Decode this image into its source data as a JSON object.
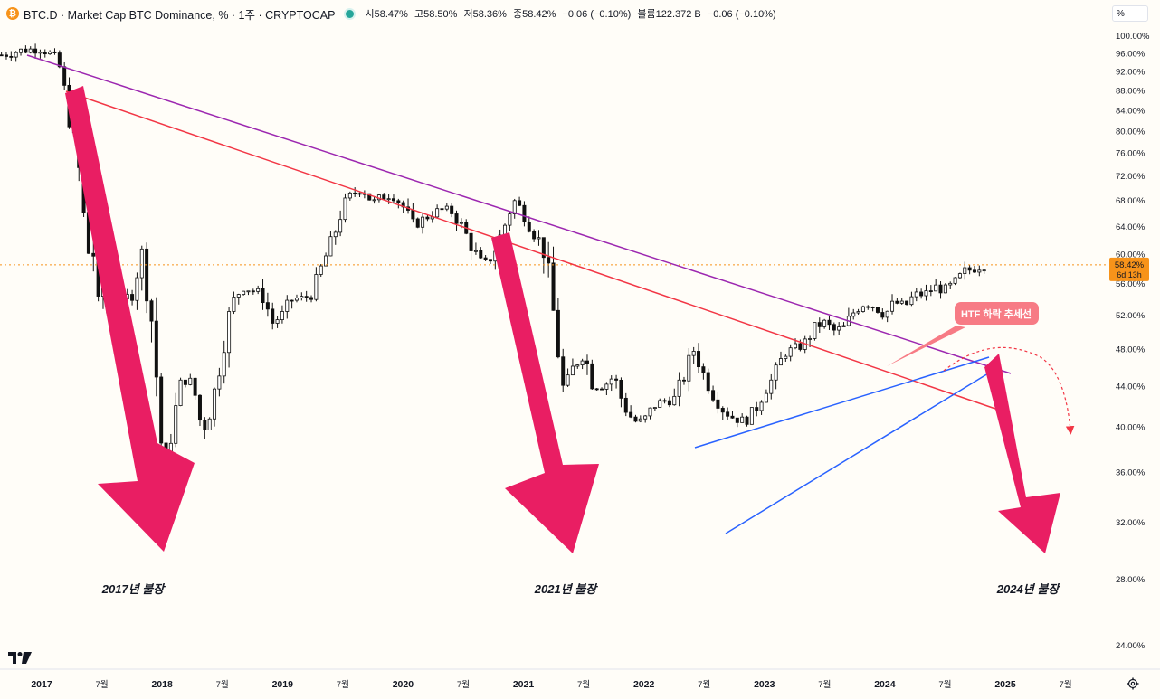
{
  "header": {
    "logo_letter": "₿",
    "title": "BTC.D · Market Cap BTC Dominance, % · 1주 · CRYPTOCAP",
    "open_label": "시",
    "open": "58.47%",
    "high_label": "고",
    "high": "58.50%",
    "low_label": "저",
    "low": "58.36%",
    "close_label": "종",
    "close": "58.42%",
    "change": "−0.06 (−0.10%)",
    "volume_label": "볼륨",
    "volume": "122.372 B",
    "volume_change": "−0.06 (−0.10%)"
  },
  "scale_button": "%",
  "price_tag": {
    "value": "58.42%",
    "countdown": "6d 13h"
  },
  "colors": {
    "bull": "#0b0b0b",
    "bear": "#0b0b0b",
    "arrow": "#e91e63",
    "red_line": "#f23645",
    "purple_line": "#9c27b0",
    "blue_line": "#2962ff",
    "callout": "#f77b85",
    "price_tag": "#f7931a"
  },
  "annotations": {
    "callout": "HTF 하락 추세선",
    "bull_2017": "2017년 불장",
    "bull_2021": "2021년 불장",
    "bull_2024": "2024년 불장"
  },
  "chart_data": {
    "type": "line",
    "title": "BTC.D · Market Cap BTC Dominance, % · 1주 · CRYPTOCAP",
    "ylabel": "",
    "y_scale": "log",
    "ylim": [
      22.6,
      101.5
    ],
    "y_ticks": [
      "100.00%",
      "96.00%",
      "92.00%",
      "88.00%",
      "84.00%",
      "80.00%",
      "76.00%",
      "72.00%",
      "68.00%",
      "64.00%",
      "60.00%",
      "56.00%",
      "52.00%",
      "48.00%",
      "44.00%",
      "40.00%",
      "36.00%",
      "32.00%",
      "28.00%",
      "24.00%"
    ],
    "x_ticks": [
      "2017",
      "7월",
      "2018",
      "7월",
      "2019",
      "7월",
      "2020",
      "7월",
      "2021",
      "7월",
      "2022",
      "7월",
      "2023",
      "7월",
      "2024",
      "7월",
      "2025",
      "7월"
    ],
    "last_price": 58.42,
    "series": [
      {
        "x": [
          "2016-09",
          "2016-11",
          "2017-01",
          "2017-02",
          "2017-03",
          "2017-03",
          "2017-04",
          "2017-05",
          "2017-05",
          "2017-06",
          "2017-06",
          "2017-07",
          "2017-08",
          "2017-09",
          "2017-10",
          "2017-11",
          "2017-12",
          "2018-01",
          "2018-01",
          "2018-02",
          "2018-03",
          "2018-04",
          "2018-05",
          "2018-06",
          "2018-07",
          "2018-08",
          "2018-09",
          "2018-10",
          "2018-11",
          "2018-12",
          "2019-01",
          "2019-02",
          "2019-03",
          "2019-04",
          "2019-05",
          "2019-06",
          "2019-07",
          "2019-08",
          "2019-09",
          "2019-10",
          "2019-11",
          "2019-12",
          "2020-01",
          "2020-02",
          "2020-03",
          "2020-04",
          "2020-05",
          "2020-06",
          "2020-07",
          "2020-08",
          "2020-09",
          "2020-10",
          "2020-11",
          "2020-12",
          "2021-01",
          "2021-02",
          "2021-03",
          "2021-04",
          "2021-05",
          "2021-06",
          "2021-07",
          "2021-08",
          "2021-09",
          "2021-10",
          "2021-11",
          "2021-12",
          "2022-01",
          "2022-02",
          "2022-03",
          "2022-04",
          "2022-05",
          "2022-06",
          "2022-07",
          "2022-08",
          "2022-09",
          "2022-10",
          "2022-11",
          "2022-12",
          "2023-01",
          "2023-02",
          "2023-03",
          "2023-04",
          "2023-05",
          "2023-06",
          "2023-07",
          "2023-08",
          "2023-09",
          "2023-10",
          "2023-11",
          "2023-12",
          "2024-01",
          "2024-02",
          "2024-03",
          "2024-04",
          "2024-05",
          "2024-06",
          "2024-07",
          "2024-08",
          "2024-09",
          "2024-10",
          "2024-11"
        ],
        "y": [
          95.5,
          96.5,
          97.0,
          95.5,
          92.0,
          84.0,
          80.0,
          70.0,
          58.0,
          64.0,
          52.0,
          56.0,
          50.0,
          53.0,
          55.0,
          60.0,
          51.0,
          37.5,
          36.5,
          40.0,
          44.5,
          44.5,
          39.5,
          42.0,
          48.0,
          53.5,
          55.5,
          55.0,
          54.5,
          51.0,
          52.0,
          54.0,
          54.0,
          54.5,
          58.5,
          62.0,
          67.0,
          69.0,
          70.0,
          67.5,
          68.5,
          69.0,
          67.0,
          64.0,
          65.0,
          66.0,
          66.5,
          66.0,
          63.5,
          60.5,
          58.0,
          60.0,
          63.5,
          68.0,
          66.0,
          63.0,
          61.0,
          52.0,
          43.0,
          46.0,
          47.5,
          44.0,
          44.0,
          45.0,
          42.0,
          40.5,
          40.5,
          42.0,
          42.5,
          42.5,
          45.0,
          48.0,
          45.0,
          43.0,
          41.5,
          40.8,
          40.5,
          41.5,
          43.5,
          45.0,
          47.5,
          48.0,
          48.5,
          50.5,
          51.0,
          50.0,
          50.5,
          52.5,
          53.5,
          53.0,
          52.0,
          53.5,
          53.0,
          54.5,
          54.5,
          55.5,
          55.0,
          56.0,
          57.5,
          58.0,
          58.4
        ]
      }
    ]
  }
}
